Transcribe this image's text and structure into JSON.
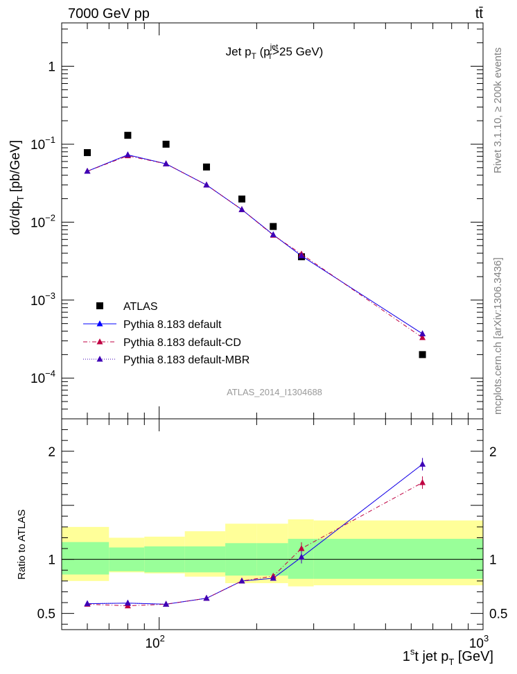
{
  "header": {
    "left": "7000 GeV pp",
    "right": "tt̄"
  },
  "side": {
    "rivet": "Rivet 3.1.10, ≥ 200k events",
    "source": "mcplots.cern.ch [arXiv:1306.3436]"
  },
  "analysis_id": "ATLAS_2014_I1304688",
  "colors": {
    "data": "#000000",
    "pythia_default": "#0000ff",
    "pythia_cd": "#bf0041",
    "pythia_mbr": "#3f00b5",
    "band_inner": "#99ff99",
    "band_outer": "#ffff99"
  },
  "chart_data": {
    "type": "scatter",
    "title": {
      "prefix": "Jet p",
      "sub": "T",
      "rest": " (p",
      "sup2": "jet",
      "sub2": "T",
      "tail": ">25 GeV)"
    },
    "xlabel": {
      "pre": "1",
      "sup": "s",
      "mid": "t jet p",
      "sub": "T",
      "post": " [GeV]"
    },
    "ylabel_main": {
      "pre": "dσ/dp",
      "sub": "T",
      "post": " [pb/GeV]"
    },
    "ylabel_ratio": "Ratio to ATLAS",
    "xscale": "log",
    "xlim": [
      50,
      1000
    ],
    "ylim_main": [
      3e-05,
      3.6
    ],
    "ylim_ratio": [
      0.35,
      2.3
    ],
    "x_tick_labels": [
      {
        "value": 100,
        "base": "10",
        "exp": "2"
      },
      {
        "value": 1000,
        "base": "10",
        "exp": "3"
      }
    ],
    "y_tick_labels_main": [
      {
        "value": 1,
        "base": "1",
        "exp": ""
      },
      {
        "value": 0.1,
        "base": "10",
        "exp": "−1"
      },
      {
        "value": 0.01,
        "base": "10",
        "exp": "−2"
      },
      {
        "value": 0.001,
        "base": "10",
        "exp": "−3"
      },
      {
        "value": 0.0001,
        "base": "10",
        "exp": "−4"
      }
    ],
    "y_tick_labels_ratio": [
      {
        "value": 0.5,
        "label": "0.5"
      },
      {
        "value": 1,
        "label": "1"
      },
      {
        "value": 2,
        "label": "2"
      }
    ],
    "bins": [
      {
        "lo": 50,
        "hi": 70
      },
      {
        "lo": 70,
        "hi": 90
      },
      {
        "lo": 90,
        "hi": 120
      },
      {
        "lo": 120,
        "hi": 160
      },
      {
        "lo": 160,
        "hi": 200
      },
      {
        "lo": 200,
        "hi": 250
      },
      {
        "lo": 250,
        "hi": 300
      },
      {
        "lo": 300,
        "hi": 1000
      }
    ],
    "x": [
      60,
      80,
      105,
      140,
      180,
      225,
      275,
      650
    ],
    "band_inner": [
      [
        0.86,
        1.16
      ],
      [
        0.89,
        1.11
      ],
      [
        0.88,
        1.12
      ],
      [
        0.88,
        1.12
      ],
      [
        0.85,
        1.15
      ],
      [
        0.85,
        1.15
      ],
      [
        0.82,
        1.19
      ],
      [
        0.82,
        1.19
      ]
    ],
    "band_outer": [
      [
        0.8,
        1.3
      ],
      [
        0.88,
        1.2
      ],
      [
        0.87,
        1.21
      ],
      [
        0.84,
        1.26
      ],
      [
        0.78,
        1.33
      ],
      [
        0.78,
        1.33
      ],
      [
        0.75,
        1.37
      ],
      [
        0.76,
        1.36
      ]
    ],
    "legend_position": "bottom-left",
    "series": [
      {
        "name": "ATLAS",
        "marker": "square",
        "values": [
          0.078,
          0.13,
          0.1,
          0.051,
          0.0198,
          0.0088,
          0.0036,
          0.0002
        ],
        "ratio": [
          1,
          1,
          1,
          1,
          1,
          1,
          1,
          1
        ]
      },
      {
        "name": "Pythia 8.183 default",
        "marker": "triangle",
        "line": "solid",
        "values": [
          0.045,
          0.073,
          0.056,
          0.03,
          0.0145,
          0.0069,
          0.0037,
          0.00037
        ],
        "ratio": [
          0.59,
          0.595,
          0.585,
          0.64,
          0.8,
          0.825,
          1.02,
          1.88
        ]
      },
      {
        "name": "Pythia 8.183 default-CD",
        "marker": "triangle",
        "line": "dashdot",
        "values": [
          0.045,
          0.071,
          0.056,
          0.03,
          0.0145,
          0.0068,
          0.0039,
          0.00033
        ],
        "ratio": [
          0.585,
          0.57,
          0.585,
          0.64,
          0.8,
          0.845,
          1.1,
          1.71
        ]
      },
      {
        "name": "Pythia 8.183 default-MBR",
        "marker": "triangle",
        "line": "dotted",
        "values": [
          0.045,
          0.073,
          0.056,
          0.03,
          0.0145,
          0.0069,
          0.0037,
          0.00037
        ],
        "ratio": [
          0.59,
          0.595,
          0.585,
          0.64,
          0.8,
          0.825,
          1.02,
          1.88
        ]
      }
    ]
  }
}
